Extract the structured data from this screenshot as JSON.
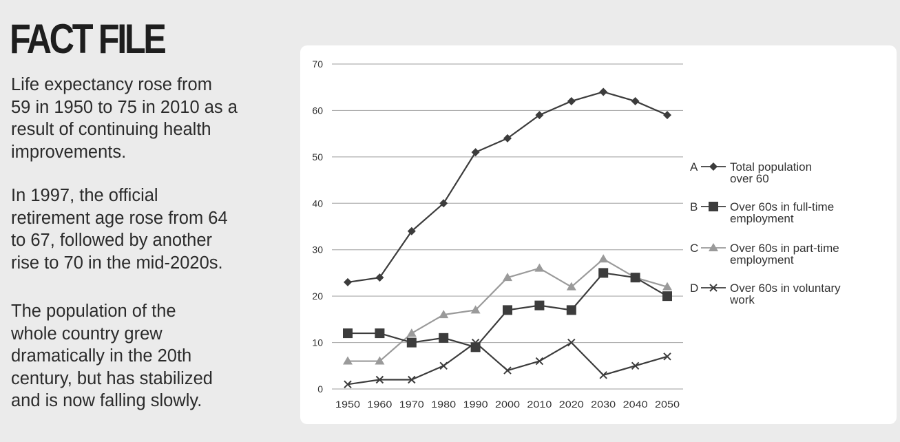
{
  "fact_file": {
    "title": "FACT FILE",
    "paragraphs": [
      [
        "Life expectancy rose from",
        "59 in 1950 to 75 in 2010 as a",
        "result of continuing health",
        "improvements."
      ],
      [
        "In 1997, the official",
        "retirement age rose from 64",
        "to 67, followed by another",
        "rise to 70 in the mid-2020s."
      ],
      [
        "The population of the",
        "whole country grew",
        "dramatically in the 20th",
        "century, but has stabilized",
        "and is now falling slowly."
      ]
    ]
  },
  "chart_data": {
    "type": "line",
    "x": [
      "1950",
      "1960",
      "1970",
      "1980",
      "1990",
      "2000",
      "2010",
      "2020",
      "2030",
      "2040",
      "2050"
    ],
    "ylim": [
      0,
      70
    ],
    "yticks": [
      0,
      10,
      20,
      30,
      40,
      50,
      60,
      70
    ],
    "grid": true,
    "legend_position": "right",
    "series": [
      {
        "letter": "A",
        "name": "Total population over 60",
        "name_lines": [
          "Total population",
          "over 60"
        ],
        "marker": "diamond",
        "color": "#3c3c3c",
        "values": [
          23,
          24,
          34,
          40,
          51,
          54,
          59,
          62,
          64,
          62,
          59
        ]
      },
      {
        "letter": "B",
        "name": "Over 60s in full-time employment",
        "name_lines": [
          "Over 60s in full-time",
          "employment"
        ],
        "marker": "square",
        "color": "#3c3c3c",
        "values": [
          12,
          12,
          10,
          11,
          9,
          17,
          18,
          17,
          25,
          24,
          20
        ]
      },
      {
        "letter": "C",
        "name": "Over 60s in part-time employment",
        "name_lines": [
          "Over 60s in part-time",
          "employment"
        ],
        "marker": "triangle",
        "color": "#9a9a9a",
        "values": [
          6,
          6,
          12,
          16,
          17,
          24,
          26,
          22,
          28,
          24,
          22
        ]
      },
      {
        "letter": "D",
        "name": "Over 60s in voluntary work",
        "name_lines": [
          "Over 60s in voluntary",
          "work"
        ],
        "marker": "cross",
        "color": "#3c3c3c",
        "values": [
          1,
          2,
          2,
          5,
          10,
          4,
          6,
          10,
          3,
          5,
          7
        ]
      }
    ]
  }
}
